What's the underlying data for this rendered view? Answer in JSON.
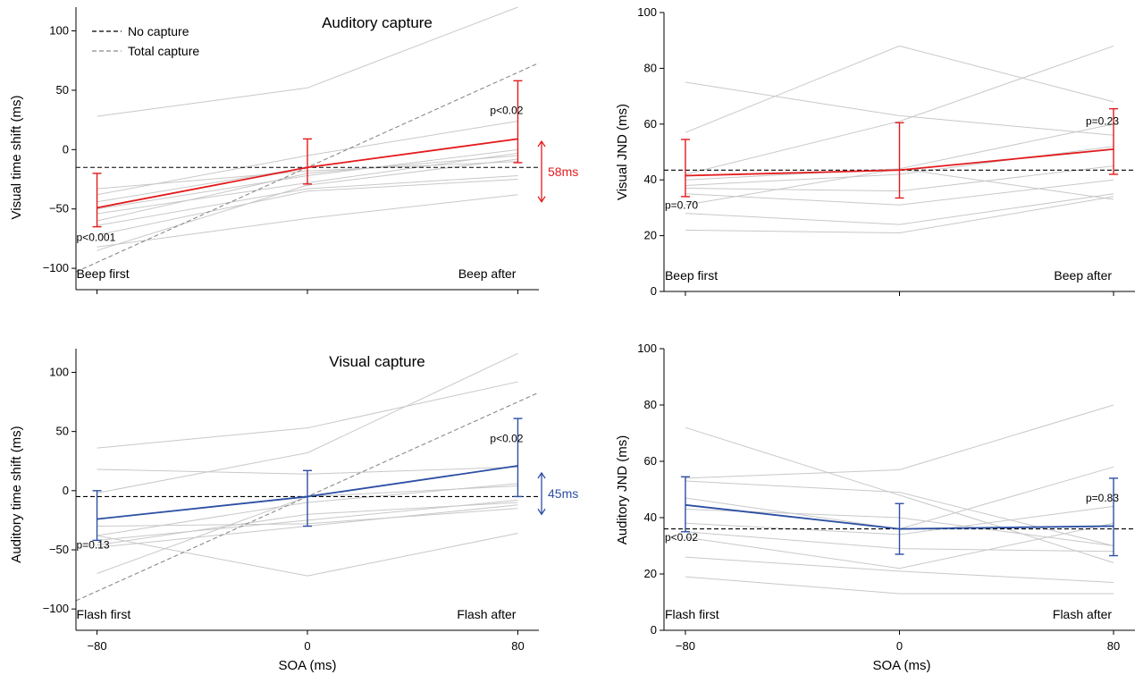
{
  "colors": {
    "red": "#e31a1c",
    "blue": "#2c4fa3",
    "subject": "#c8c8c8",
    "total_capture": "#8a8a8a",
    "no_capture": "#000000"
  },
  "legend": {
    "no_capture": "No capture",
    "total_capture": "Total capture"
  },
  "chart_data": [
    {
      "id": "panel-a",
      "type": "line",
      "title": "Auditory capture",
      "xlabel": "",
      "ylabel": "Visual time shift (ms)",
      "x": [
        -80,
        0,
        80
      ],
      "xlim": [
        -88,
        88
      ],
      "ylim": [
        -118,
        120
      ],
      "yticks": [
        -100,
        -50,
        0,
        50,
        100
      ],
      "show_xtick_labels": false,
      "corner_labels": {
        "left": "Beep first",
        "right": "Beep after"
      },
      "color_key": "red",
      "mean": {
        "values": [
          -49,
          -15,
          9
        ],
        "err_low": [
          -65,
          -29,
          -11
        ],
        "err_high": [
          -20,
          9,
          58
        ]
      },
      "p_labels": [
        {
          "text": "p<0.001",
          "x": -80,
          "y": -74
        },
        {
          "text": "p<0.02",
          "x": 80,
          "y": 33
        }
      ],
      "no_capture": -15,
      "total_capture": {
        "x": [
          -88,
          88
        ],
        "y": [
          -103,
          73
        ]
      },
      "shift_arrow": {
        "x": 88,
        "from": -44,
        "to": 7,
        "label": "58ms"
      },
      "legend_position": "top-left",
      "subjects": [
        [
          28,
          52,
          120
        ],
        [
          -38,
          -5,
          24
        ],
        [
          -44,
          -15,
          9
        ],
        [
          -50,
          -22,
          0
        ],
        [
          -54,
          -28,
          -3
        ],
        [
          -60,
          -20,
          -5
        ],
        [
          -64,
          -33,
          -22
        ],
        [
          -72,
          -35,
          -25
        ],
        [
          -82,
          -58,
          -38
        ],
        [
          -85,
          -30,
          -8
        ],
        [
          -33,
          -18,
          -10
        ]
      ]
    },
    {
      "id": "panel-b",
      "type": "line",
      "title": "",
      "xlabel": "",
      "ylabel": "Visual JND (ms)",
      "x": [
        -80,
        0,
        80
      ],
      "xlim": [
        -88,
        88
      ],
      "ylim": [
        0,
        100
      ],
      "yticks": [
        0,
        20,
        40,
        60,
        80,
        100
      ],
      "show_xtick_labels": false,
      "corner_labels": {
        "left": "Beep first",
        "right": "Beep after"
      },
      "color_key": "blue_is_false_red",
      "mean": {
        "values": [
          41.5,
          43.5,
          51
        ],
        "err_low": [
          34,
          33.5,
          42
        ],
        "err_high": [
          54.5,
          60.5,
          65.5
        ]
      },
      "p_labels": [
        {
          "text": "p=0.70",
          "x": -80,
          "y": 31
        },
        {
          "text": "p=0.23",
          "x": 80,
          "y": 61
        }
      ],
      "no_capture": 43.5,
      "subjects": [
        [
          75,
          63,
          56
        ],
        [
          57,
          88,
          68
        ],
        [
          42,
          61,
          88
        ],
        [
          40,
          44,
          60
        ],
        [
          38,
          42,
          52
        ],
        [
          37,
          36,
          45
        ],
        [
          35,
          31,
          40
        ],
        [
          28,
          24,
          35
        ],
        [
          22,
          21,
          34
        ],
        [
          31,
          44,
          33
        ]
      ]
    },
    {
      "id": "panel-c",
      "type": "line",
      "title": "Visual capture",
      "xlabel": "SOA (ms)",
      "ylabel": "Auditory time shift (ms)",
      "x": [
        -80,
        0,
        80
      ],
      "xlim": [
        -88,
        88
      ],
      "ylim": [
        -118,
        120
      ],
      "yticks": [
        -100,
        -50,
        0,
        50,
        100
      ],
      "show_xtick_labels": true,
      "xticks": [
        -80,
        0,
        80
      ],
      "corner_labels": {
        "left": "Flash first",
        "right": "Flash after"
      },
      "color_key": "blue",
      "mean": {
        "values": [
          -24,
          -5,
          21
        ],
        "err_low": [
          -42,
          -30,
          -5
        ],
        "err_high": [
          0,
          17,
          61
        ]
      },
      "p_labels": [
        {
          "text": "p=0.13",
          "x": -80,
          "y": -46
        },
        {
          "text": "p<0.02",
          "x": 80,
          "y": 44
        }
      ],
      "no_capture": -5,
      "total_capture": {
        "x": [
          -88,
          88
        ],
        "y": [
          -93,
          83
        ]
      },
      "shift_arrow": {
        "x": 88,
        "from": -20,
        "to": 15,
        "label": "45ms"
      },
      "subjects": [
        [
          36,
          53,
          92
        ],
        [
          18,
          14,
          20
        ],
        [
          -2,
          32,
          116
        ],
        [
          -38,
          -10,
          6
        ],
        [
          -42,
          -25,
          -8
        ],
        [
          -46,
          -20,
          -10
        ],
        [
          -48,
          -30,
          -12
        ],
        [
          -70,
          -5,
          4
        ],
        [
          -38,
          -72,
          -36
        ],
        [
          -30,
          -28,
          -15
        ]
      ]
    },
    {
      "id": "panel-d",
      "type": "line",
      "title": "",
      "xlabel": "SOA (ms)",
      "ylabel": "Auditory JND (ms)",
      "x": [
        -80,
        0,
        80
      ],
      "xlim": [
        -88,
        88
      ],
      "ylim": [
        0,
        100
      ],
      "yticks": [
        0,
        20,
        40,
        60,
        80,
        100
      ],
      "show_xtick_labels": true,
      "xticks": [
        -80,
        0,
        80
      ],
      "corner_labels": {
        "left": "Flash first",
        "right": "Flash after"
      },
      "color_key": "blue",
      "mean": {
        "values": [
          44.5,
          36,
          37
        ],
        "err_low": [
          35,
          27,
          26.5
        ],
        "err_high": [
          54.5,
          45,
          54
        ]
      },
      "p_labels": [
        {
          "text": "p<0.02",
          "x": -80,
          "y": 33
        },
        {
          "text": "p=0.83",
          "x": 80,
          "y": 47
        }
      ],
      "no_capture": 36,
      "subjects": [
        [
          72,
          48,
          24
        ],
        [
          54,
          57,
          80
        ],
        [
          53,
          49,
          30
        ],
        [
          47,
          36,
          58
        ],
        [
          38,
          34,
          44
        ],
        [
          35,
          29,
          28
        ],
        [
          33,
          22,
          38
        ],
        [
          26,
          21,
          17
        ],
        [
          19,
          13,
          13
        ],
        [
          43,
          40,
          30
        ]
      ]
    }
  ]
}
